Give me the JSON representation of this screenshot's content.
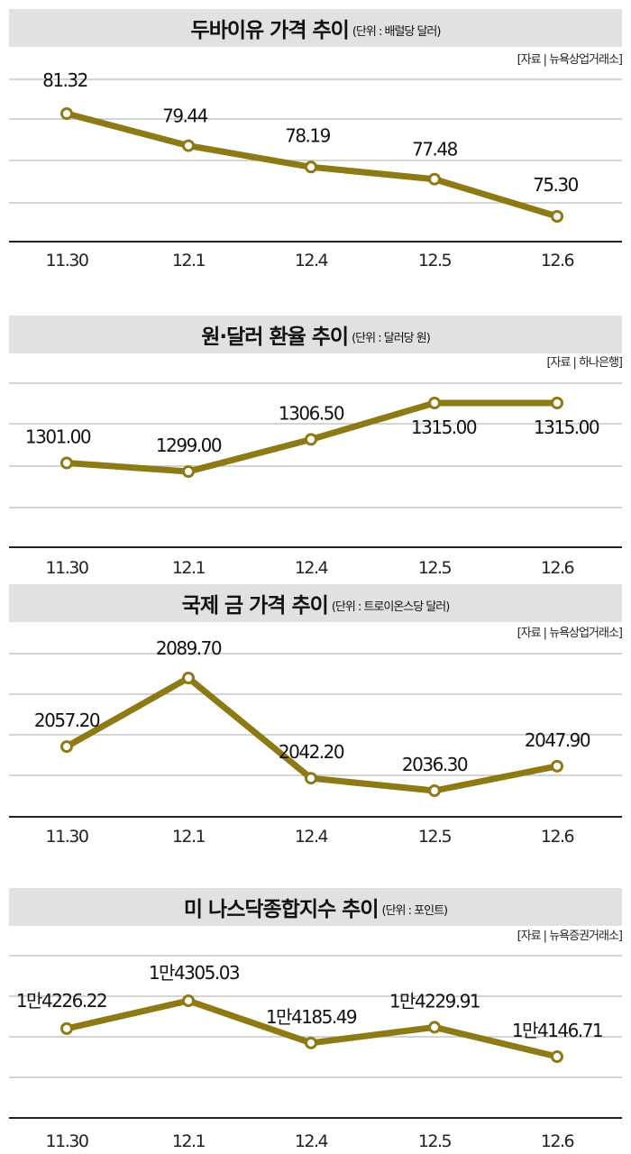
{
  "colors": {
    "line": "#8e7a14",
    "marker_fill": "#ffffff",
    "grid": "#bbbbbb",
    "axis": "#222222",
    "title_bg": "#e1e1e1"
  },
  "chart_data": [
    {
      "type": "line",
      "title": "두바이유 가격 추이",
      "unit": "(단위 : 배럴당 달러)",
      "source": "[자료 | 뉴욕상업거래소]",
      "categories": [
        "11.30",
        "12.1",
        "12.4",
        "12.5",
        "12.6"
      ],
      "values": [
        81.32,
        79.44,
        78.19,
        77.48,
        75.3
      ],
      "labels": [
        "81.32",
        "79.44",
        "78.19",
        "77.48",
        "75.30"
      ],
      "grid": true
    },
    {
      "type": "line",
      "title": "원·달러 환율 추이",
      "unit": "(단위 : 달러당 원)",
      "source": "[자료 | 하나은행]",
      "categories": [
        "11.30",
        "12.1",
        "12.4",
        "12.5",
        "12.6"
      ],
      "values": [
        1301.0,
        1299.0,
        1306.5,
        1315.0,
        1315.0
      ],
      "labels": [
        "1301.00",
        "1299.00",
        "1306.50",
        "1315.00",
        "1315.00"
      ],
      "grid": true
    },
    {
      "type": "line",
      "title": "국제 금 가격 추이",
      "unit": "(단위 : 트로이온스당 달러)",
      "source": "[자료 | 뉴욕상업거래소]",
      "categories": [
        "11.30",
        "12.1",
        "12.4",
        "12.5",
        "12.6"
      ],
      "values": [
        2057.2,
        2089.7,
        2042.2,
        2036.3,
        2047.9
      ],
      "labels": [
        "2057.20",
        "2089.70",
        "2042.20",
        "2036.30",
        "2047.90"
      ],
      "grid": true
    },
    {
      "type": "line",
      "title": "미 나스닥종합지수 추이",
      "unit": "(단위 : 포인트)",
      "source": "[자료 | 뉴욕증권거래소]",
      "categories": [
        "11.30",
        "12.1",
        "12.4",
        "12.5",
        "12.6"
      ],
      "values": [
        14226.22,
        14305.03,
        14185.49,
        14229.91,
        14146.71
      ],
      "labels": [
        "1만4226.22",
        "1만4305.03",
        "1만4185.49",
        "1만4229.91",
        "1만4146.71"
      ],
      "grid": true
    }
  ]
}
